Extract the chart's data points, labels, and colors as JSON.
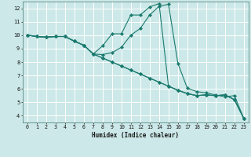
{
  "title": "",
  "xlabel": "Humidex (Indice chaleur)",
  "bg_color": "#cce8e8",
  "line_color": "#1a7a6e",
  "grid_color": "#ffffff",
  "xlim": [
    -0.5,
    23.5
  ],
  "ylim": [
    3.5,
    12.5
  ],
  "xticks": [
    0,
    1,
    2,
    3,
    4,
    5,
    6,
    7,
    8,
    9,
    10,
    11,
    12,
    13,
    14,
    15,
    16,
    17,
    18,
    19,
    20,
    21,
    22,
    23
  ],
  "yticks": [
    4,
    5,
    6,
    7,
    8,
    9,
    10,
    11,
    12
  ],
  "lines": [
    [
      [
        0,
        10.0
      ],
      [
        1,
        9.9
      ],
      [
        2,
        9.85
      ],
      [
        3,
        9.9
      ],
      [
        4,
        9.9
      ],
      [
        5,
        9.55
      ],
      [
        6,
        9.25
      ],
      [
        7,
        8.6
      ],
      [
        8,
        8.3
      ],
      [
        9,
        8.0
      ],
      [
        10,
        7.7
      ],
      [
        11,
        7.4
      ],
      [
        12,
        7.1
      ],
      [
        13,
        6.8
      ],
      [
        14,
        6.5
      ],
      [
        15,
        6.2
      ],
      [
        16,
        5.9
      ],
      [
        17,
        5.65
      ],
      [
        18,
        5.5
      ],
      [
        19,
        5.55
      ],
      [
        20,
        5.5
      ],
      [
        21,
        5.55
      ],
      [
        22,
        5.2
      ],
      [
        23,
        3.8
      ]
    ],
    [
      [
        0,
        10.0
      ],
      [
        1,
        9.9
      ],
      [
        2,
        9.85
      ],
      [
        3,
        9.9
      ],
      [
        4,
        9.9
      ],
      [
        5,
        9.55
      ],
      [
        6,
        9.25
      ],
      [
        7,
        8.6
      ],
      [
        8,
        8.55
      ],
      [
        9,
        8.7
      ],
      [
        10,
        9.1
      ],
      [
        11,
        10.0
      ],
      [
        12,
        10.5
      ],
      [
        13,
        11.5
      ],
      [
        14,
        12.15
      ],
      [
        15,
        12.3
      ],
      [
        16,
        7.9
      ],
      [
        17,
        6.05
      ],
      [
        18,
        5.8
      ],
      [
        19,
        5.7
      ],
      [
        20,
        5.55
      ],
      [
        21,
        5.4
      ],
      [
        22,
        5.5
      ],
      [
        23,
        3.8
      ]
    ],
    [
      [
        0,
        10.0
      ],
      [
        1,
        9.9
      ],
      [
        2,
        9.85
      ],
      [
        3,
        9.9
      ],
      [
        4,
        9.9
      ],
      [
        5,
        9.55
      ],
      [
        6,
        9.25
      ],
      [
        7,
        8.6
      ],
      [
        8,
        9.2
      ],
      [
        9,
        10.1
      ],
      [
        10,
        10.1
      ],
      [
        11,
        11.5
      ],
      [
        12,
        11.5
      ],
      [
        13,
        12.1
      ],
      [
        14,
        12.35
      ],
      [
        15,
        6.2
      ],
      [
        16,
        5.9
      ],
      [
        17,
        5.65
      ],
      [
        18,
        5.5
      ],
      [
        19,
        5.55
      ],
      [
        20,
        5.5
      ],
      [
        21,
        5.55
      ],
      [
        22,
        5.2
      ],
      [
        23,
        3.8
      ]
    ],
    [
      [
        0,
        10.0
      ],
      [
        1,
        9.9
      ],
      [
        2,
        9.85
      ],
      [
        3,
        9.9
      ],
      [
        4,
        9.9
      ],
      [
        5,
        9.55
      ],
      [
        6,
        9.25
      ],
      [
        7,
        8.6
      ],
      [
        8,
        8.3
      ],
      [
        9,
        8.0
      ],
      [
        10,
        7.7
      ],
      [
        11,
        7.4
      ],
      [
        12,
        7.1
      ],
      [
        13,
        6.8
      ],
      [
        14,
        6.5
      ],
      [
        15,
        6.2
      ],
      [
        16,
        5.9
      ],
      [
        17,
        5.65
      ],
      [
        18,
        5.5
      ],
      [
        19,
        5.55
      ],
      [
        20,
        5.5
      ],
      [
        21,
        5.55
      ],
      [
        22,
        5.2
      ],
      [
        23,
        3.8
      ]
    ]
  ]
}
